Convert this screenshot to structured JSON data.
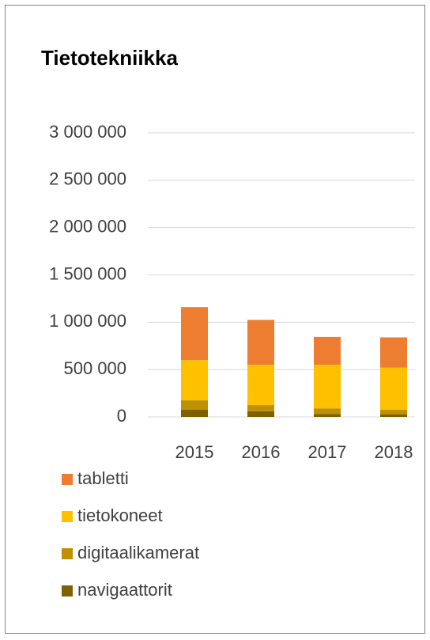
{
  "chart_data": {
    "type": "bar",
    "stacked": true,
    "title": "Tietotekniikka",
    "categories": [
      "2015",
      "2016",
      "2017",
      "2018"
    ],
    "series": [
      {
        "name": "navigaattorit",
        "color": "#7f6000",
        "values": [
          75000,
          60000,
          30000,
          25000
        ]
      },
      {
        "name": "digitaalikamerat",
        "color": "#bf9000",
        "values": [
          100000,
          65000,
          60000,
          50000
        ]
      },
      {
        "name": "tietokoneet",
        "color": "#ffc000",
        "values": [
          425000,
          425000,
          460000,
          445000
        ]
      },
      {
        "name": "tabletti",
        "color": "#ed7d31",
        "values": [
          560000,
          475000,
          295000,
          320000
        ]
      }
    ],
    "ylim": [
      0,
      3000000
    ],
    "yticks": [
      0,
      {
        "value": 500000,
        "label": "500 000"
      },
      {
        "value": 1000000,
        "label": "1 000 000"
      },
      {
        "value": 1500000,
        "label": "1 500 000"
      },
      {
        "value": 2000000,
        "label": "2 000 000"
      },
      {
        "value": 2500000,
        "label": "2 500 000"
      },
      {
        "value": 3000000,
        "label": "3 000 000"
      }
    ],
    "grid": true,
    "legend": "bottom"
  }
}
